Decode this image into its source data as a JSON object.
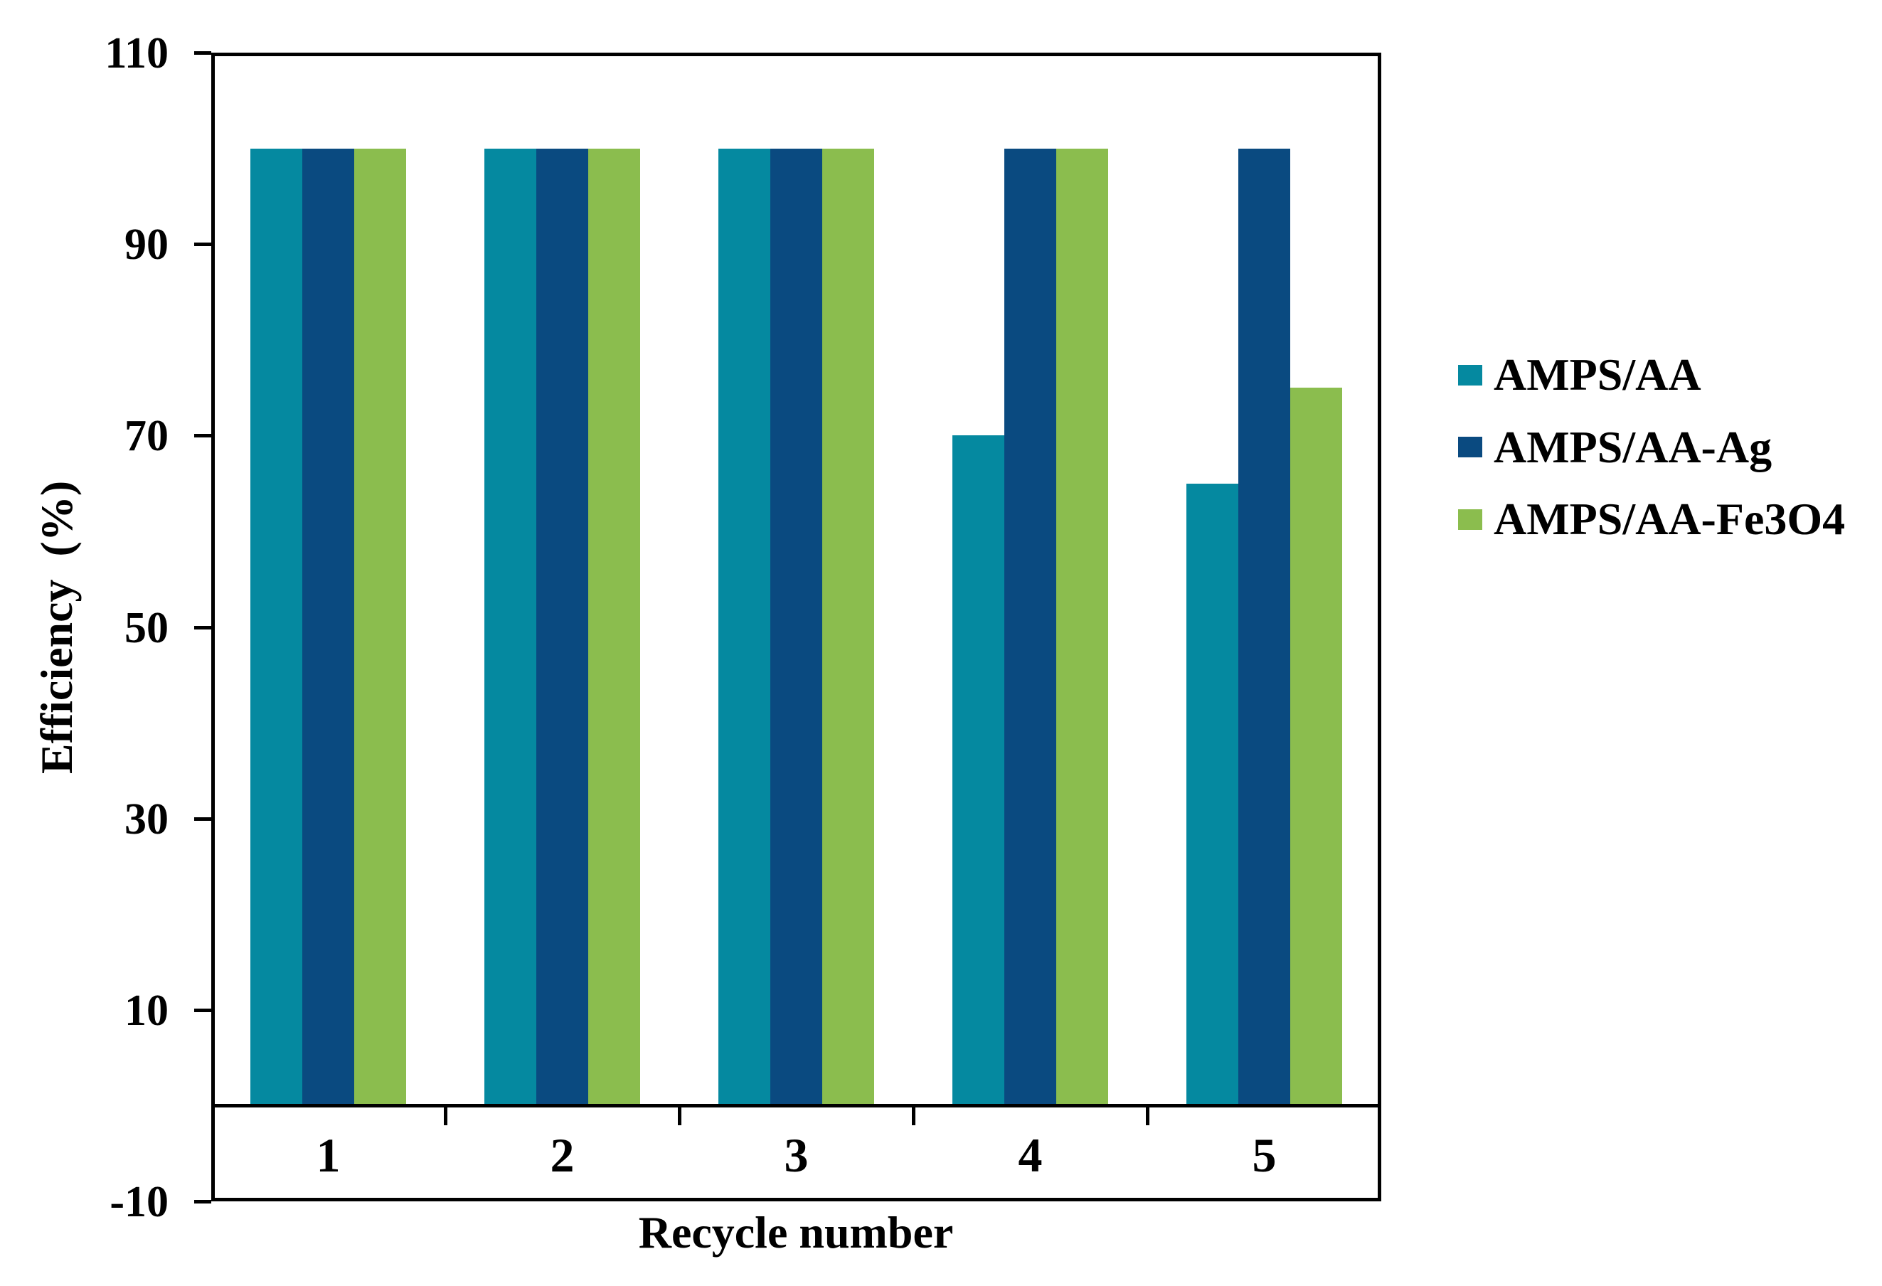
{
  "chart_data": {
    "type": "bar",
    "title": "",
    "categories": [
      "1",
      "2",
      "3",
      "4",
      "5"
    ],
    "series": [
      {
        "name": "AMPS/AA",
        "color": "#0589A0",
        "values": [
          100,
          100,
          100,
          70,
          65
        ]
      },
      {
        "name": "AMPS/AA-Ag",
        "color": "#0A4A80",
        "values": [
          100,
          100,
          100,
          100,
          100
        ]
      },
      {
        "name": "AMPS/AA-Fe3O4",
        "color": "#8BBD4E",
        "values": [
          100,
          100,
          100,
          100,
          75
        ]
      }
    ],
    "xlabel": "Recycle number",
    "ylabel": "Efficiency  (%)",
    "ylim": [
      -10,
      110
    ],
    "yticks": [
      110,
      90,
      70,
      50,
      30,
      10,
      -10
    ],
    "bar_baseline": 0,
    "grid": false,
    "legend_position": "right",
    "axis_color": "#000000",
    "background_color": "#FFFFFF"
  }
}
